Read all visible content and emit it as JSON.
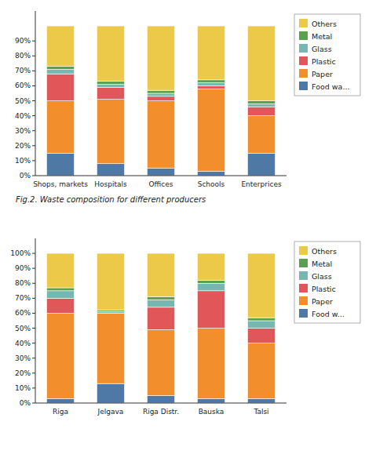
{
  "chart_data": [
    {
      "type": "bar",
      "stacked": true,
      "grid": false,
      "legend": "right",
      "categories": [
        "Shops, markets",
        "Hospitals",
        "Offices",
        "Schools",
        "Enterprices"
      ],
      "series": [
        {
          "name": "Food wa...",
          "color": "#4e79a7",
          "values": [
            15,
            8,
            5,
            3,
            15
          ]
        },
        {
          "name": "Paper",
          "color": "#f28e2b",
          "values": [
            35,
            43,
            45,
            55,
            25
          ]
        },
        {
          "name": "Plastic",
          "color": "#e15759",
          "values": [
            18,
            8,
            3,
            2,
            6
          ]
        },
        {
          "name": "Glass",
          "color": "#76b7b2",
          "values": [
            3,
            2,
            2,
            2,
            2
          ]
        },
        {
          "name": "Metal",
          "color": "#59a14f",
          "values": [
            2,
            2,
            2,
            2,
            2
          ]
        },
        {
          "name": "Others",
          "color": "#edc949",
          "values": [
            27,
            37,
            43,
            36,
            50
          ]
        }
      ],
      "ylim": [
        0,
        110
      ],
      "yticks": [
        {
          "value": 0,
          "label": "0%"
        },
        {
          "value": 10,
          "label": "10%"
        },
        {
          "value": 20,
          "label": "20%"
        },
        {
          "value": 30,
          "label": "30%"
        },
        {
          "value": 40,
          "label": "40%"
        },
        {
          "value": 50,
          "label": "50%"
        },
        {
          "value": 60,
          "label": "60%"
        },
        {
          "value": 70,
          "label": "70%"
        },
        {
          "value": 80,
          "label": "80%"
        },
        {
          "value": 90,
          "label": "90%"
        }
      ],
      "annotations": [
        "Fig.2. Waste composition for different producers"
      ]
    },
    {
      "type": "bar",
      "stacked": true,
      "grid": false,
      "legend": "right",
      "categories": [
        "Riga",
        "Jelgava",
        "Riga Distr.",
        "Bauska",
        "Talsi"
      ],
      "series": [
        {
          "name": "Food w...",
          "color": "#4e79a7",
          "values": [
            3,
            13,
            5,
            3,
            3
          ]
        },
        {
          "name": "Paper",
          "color": "#f28e2b",
          "values": [
            57,
            47,
            44,
            47,
            37
          ]
        },
        {
          "name": "Plastic",
          "color": "#e15759",
          "values": [
            10,
            0,
            15,
            25,
            10
          ]
        },
        {
          "name": "Glass",
          "color": "#76b7b2",
          "values": [
            5,
            1,
            5,
            5,
            5
          ]
        },
        {
          "name": "Metal",
          "color": "#59a14f",
          "values": [
            2,
            1,
            2,
            2,
            2
          ]
        },
        {
          "name": "Others",
          "color": "#edc949",
          "values": [
            23,
            38,
            29,
            18,
            43
          ]
        }
      ],
      "ylim": [
        0,
        110
      ],
      "yticks": [
        {
          "value": 0,
          "label": "0%"
        },
        {
          "value": 10,
          "label": "10%"
        },
        {
          "value": 20,
          "label": "20%"
        },
        {
          "value": 30,
          "label": "30%"
        },
        {
          "value": 40,
          "label": "40%"
        },
        {
          "value": 50,
          "label": "50%"
        },
        {
          "value": 60,
          "label": "60%"
        },
        {
          "value": 70,
          "label": "70%"
        },
        {
          "value": 80,
          "label": "80%"
        },
        {
          "value": 90,
          "label": "90%"
        },
        {
          "value": 100,
          "label": "100%"
        }
      ]
    }
  ]
}
